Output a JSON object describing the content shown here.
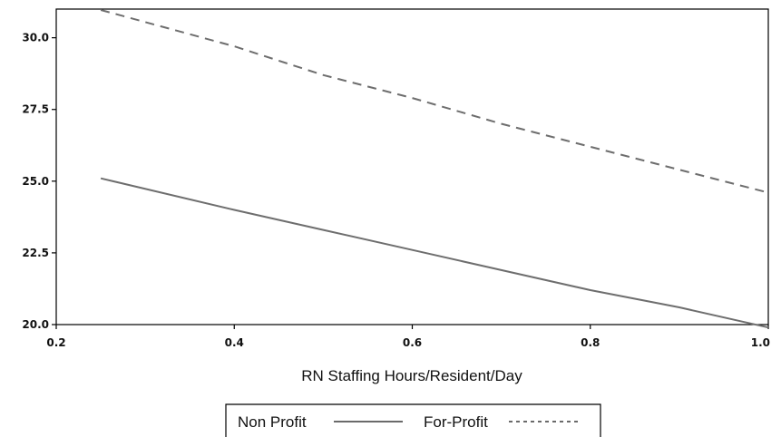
{
  "chart_data": {
    "type": "line",
    "title": "",
    "xlabel": "RN Staffing Hours/Resident/Day",
    "ylabel": "",
    "xlim": [
      0.2,
      1.0
    ],
    "ylim": [
      20.0,
      31.0
    ],
    "xticks": [
      "0.2",
      "0.4",
      "0.6",
      "0.8",
      "1.0"
    ],
    "yticks": [
      "20.0",
      "22.5",
      "25.0",
      "27.5",
      "30.0"
    ],
    "grid": false,
    "legend_position": "bottom",
    "series": [
      {
        "name": "Non Profit",
        "style": "solid",
        "color": "#6e6e6e",
        "x": [
          0.25,
          0.4,
          0.5,
          0.6,
          0.7,
          0.8,
          0.9,
          1.0
        ],
        "y": [
          25.1,
          24.0,
          23.3,
          22.6,
          21.9,
          21.2,
          20.6,
          19.9
        ]
      },
      {
        "name": "For-Profit",
        "style": "dashed",
        "color": "#6e6e6e",
        "x": [
          0.25,
          0.4,
          0.5,
          0.6,
          0.7,
          0.8,
          0.9,
          1.0
        ],
        "y": [
          31.0,
          29.7,
          28.7,
          27.9,
          27.0,
          26.2,
          25.4,
          24.6
        ]
      }
    ]
  }
}
